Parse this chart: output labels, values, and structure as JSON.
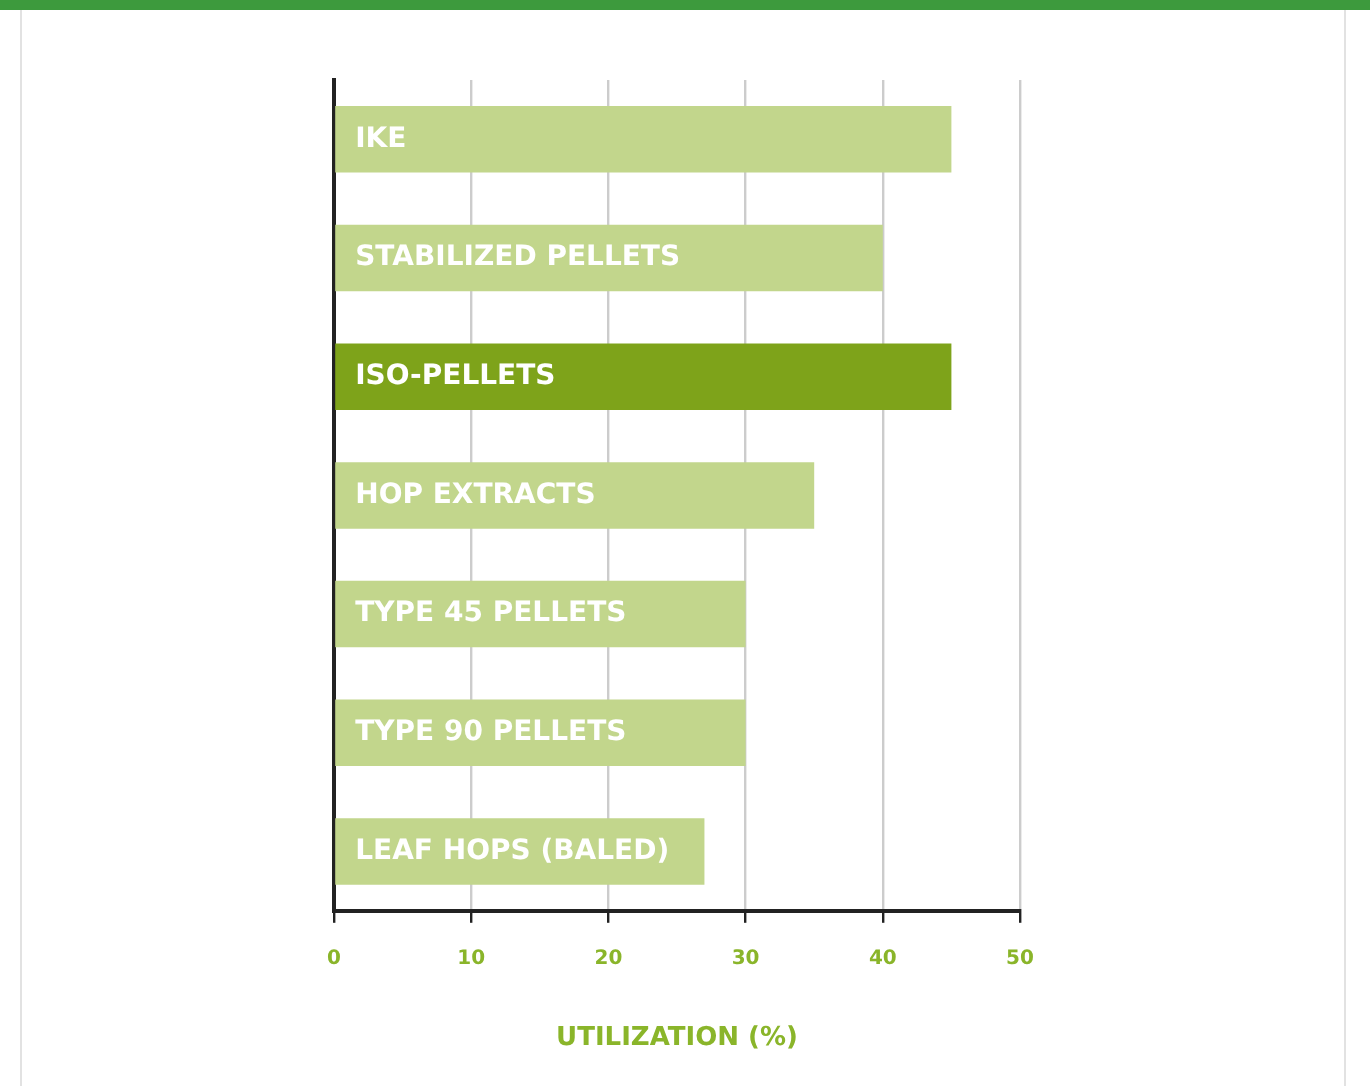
{
  "chart_data": {
    "type": "bar",
    "orientation": "horizontal",
    "xlabel": "UTILIZATION (%)",
    "categories": [
      "IKE",
      "STABILIZED PELLETS",
      "ISO-PELLETS",
      "HOP EXTRACTS",
      "TYPE 45 PELLETS",
      "TYPE 90 PELLETS",
      "LEAF HOPS (BALED)"
    ],
    "values": [
      45,
      40,
      45,
      35,
      30,
      30,
      27
    ],
    "colors": [
      "#c2d68c",
      "#c2d68c",
      "#7ea31a",
      "#c2d68c",
      "#c2d68c",
      "#c2d68c",
      "#c2d68c"
    ],
    "xlim": [
      0,
      50
    ],
    "xticks": [
      0,
      10,
      20,
      30,
      40,
      50
    ],
    "grid": "x",
    "legend": false
  }
}
